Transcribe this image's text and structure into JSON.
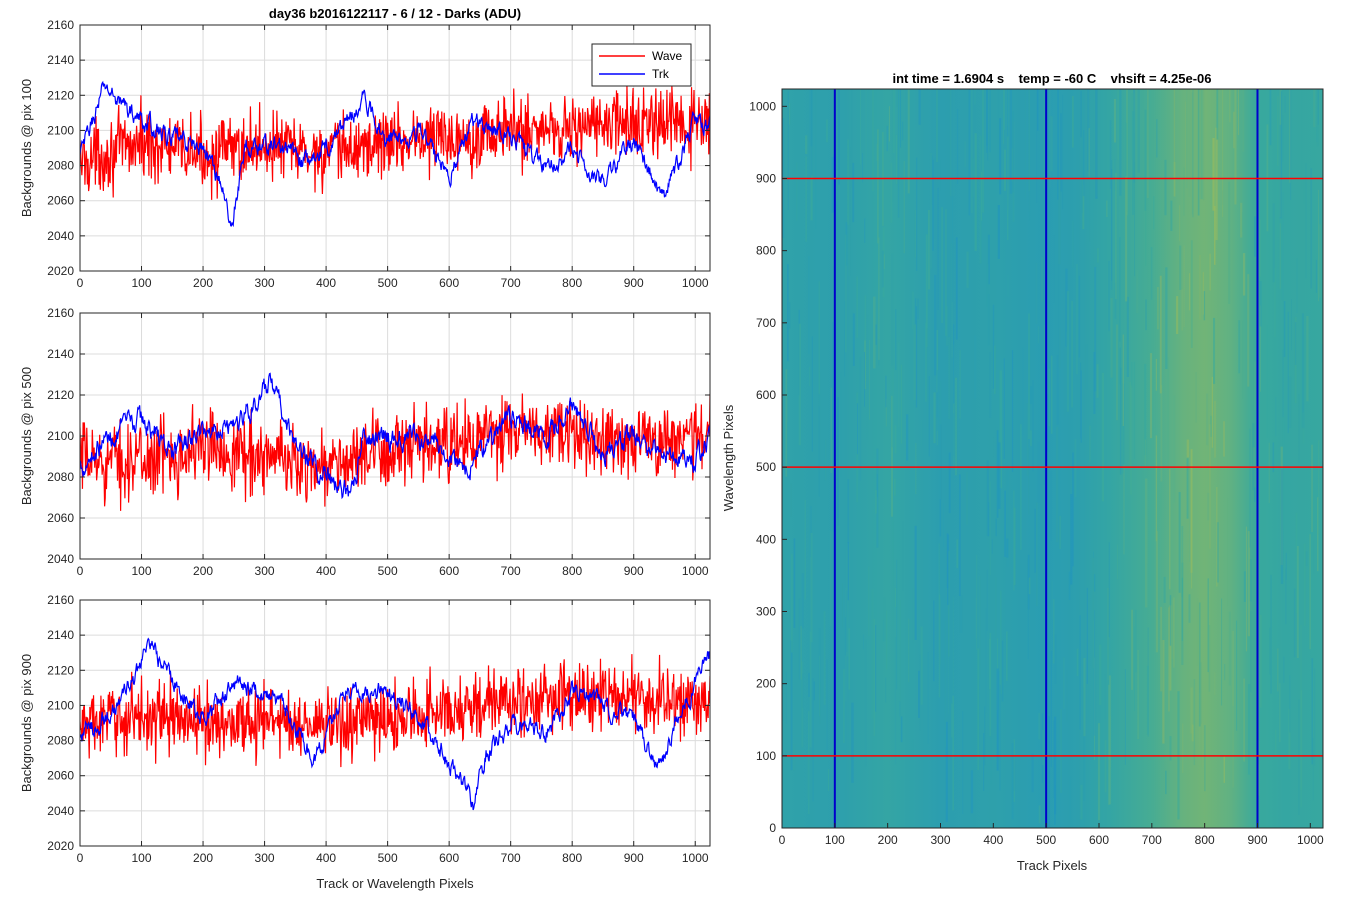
{
  "chart_data": [
    {
      "type": "line",
      "title": "day36 b2016122117 - 6 / 12 - Darks (ADU)",
      "ylabel": "Backgrounds @ pix 100",
      "xlabel": "",
      "xlim": [
        0,
        1024
      ],
      "ylim": [
        2020,
        2160
      ],
      "xticks": [
        0,
        100,
        200,
        300,
        400,
        500,
        600,
        700,
        800,
        900,
        1000
      ],
      "yticks": [
        2020,
        2040,
        2060,
        2080,
        2100,
        2120,
        2140,
        2160
      ],
      "grid": true,
      "legend": {
        "position": "top-right",
        "entries": [
          "Wave",
          "Trk"
        ]
      },
      "series": [
        {
          "name": "Wave",
          "color": "#ff0000",
          "mean": 2092,
          "noise": 14,
          "extremes": [
            2034,
            2151
          ],
          "profile": [
            [
              0,
              2082
            ],
            [
              100,
              2093
            ],
            [
              200,
              2086
            ],
            [
              300,
              2092
            ],
            [
              400,
              2086
            ],
            [
              500,
              2094
            ],
            [
              600,
              2096
            ],
            [
              700,
              2100
            ],
            [
              800,
              2102
            ],
            [
              900,
              2104
            ],
            [
              1024,
              2102
            ]
          ]
        },
        {
          "name": "Trk",
          "color": "#0000ff",
          "noise": 5,
          "extremes": [
            2040,
            2135
          ],
          "profile": [
            [
              0,
              2085
            ],
            [
              20,
              2105
            ],
            [
              40,
              2125
            ],
            [
              60,
              2118
            ],
            [
              100,
              2105
            ],
            [
              150,
              2095
            ],
            [
              200,
              2090
            ],
            [
              230,
              2070
            ],
            [
              245,
              2045
            ],
            [
              270,
              2090
            ],
            [
              320,
              2092
            ],
            [
              370,
              2082
            ],
            [
              400,
              2090
            ],
            [
              460,
              2118
            ],
            [
              500,
              2095
            ],
            [
              550,
              2100
            ],
            [
              600,
              2075
            ],
            [
              640,
              2105
            ],
            [
              700,
              2098
            ],
            [
              750,
              2080
            ],
            [
              800,
              2088
            ],
            [
              850,
              2070
            ],
            [
              900,
              2095
            ],
            [
              950,
              2060
            ],
            [
              1000,
              2108
            ],
            [
              1024,
              2102
            ]
          ]
        }
      ]
    },
    {
      "type": "line",
      "title": "",
      "ylabel": "Backgrounds @ pix 500",
      "xlabel": "",
      "xlim": [
        0,
        1024
      ],
      "ylim": [
        2040,
        2160
      ],
      "xticks": [
        0,
        100,
        200,
        300,
        400,
        500,
        600,
        700,
        800,
        900,
        1000
      ],
      "yticks": [
        2040,
        2060,
        2080,
        2100,
        2120,
        2140,
        2160
      ],
      "grid": true,
      "series": [
        {
          "name": "Wave",
          "color": "#ff0000",
          "noise": 13,
          "extremes": [
            2043,
            2143
          ],
          "profile": [
            [
              0,
              2088
            ],
            [
              100,
              2088
            ],
            [
              200,
              2095
            ],
            [
              300,
              2090
            ],
            [
              400,
              2085
            ],
            [
              500,
              2092
            ],
            [
              600,
              2095
            ],
            [
              700,
              2102
            ],
            [
              800,
              2100
            ],
            [
              900,
              2098
            ],
            [
              1024,
              2100
            ]
          ]
        },
        {
          "name": "Trk",
          "color": "#0000ff",
          "noise": 5,
          "extremes": [
            2058,
            2133
          ],
          "profile": [
            [
              0,
              2085
            ],
            [
              40,
              2098
            ],
            [
              100,
              2108
            ],
            [
              150,
              2092
            ],
            [
              200,
              2102
            ],
            [
              260,
              2108
            ],
            [
              310,
              2125
            ],
            [
              350,
              2095
            ],
            [
              400,
              2082
            ],
            [
              440,
              2068
            ],
            [
              460,
              2100
            ],
            [
              520,
              2100
            ],
            [
              580,
              2095
            ],
            [
              630,
              2085
            ],
            [
              700,
              2110
            ],
            [
              760,
              2098
            ],
            [
              800,
              2115
            ],
            [
              850,
              2092
            ],
            [
              900,
              2100
            ],
            [
              950,
              2092
            ],
            [
              1000,
              2090
            ],
            [
              1024,
              2096
            ]
          ]
        }
      ]
    },
    {
      "type": "line",
      "title": "",
      "ylabel": "Backgrounds @ pix 900",
      "xlabel": "Track or Wavelength Pixels",
      "xlim": [
        0,
        1024
      ],
      "ylim": [
        2020,
        2160
      ],
      "xticks": [
        0,
        100,
        200,
        300,
        400,
        500,
        600,
        700,
        800,
        900,
        1000
      ],
      "yticks": [
        2020,
        2040,
        2060,
        2080,
        2100,
        2120,
        2140,
        2160
      ],
      "grid": true,
      "series": [
        {
          "name": "Wave",
          "color": "#ff0000",
          "noise": 14,
          "extremes": [
            2036,
            2152
          ],
          "profile": [
            [
              0,
              2088
            ],
            [
              100,
              2095
            ],
            [
              200,
              2090
            ],
            [
              300,
              2092
            ],
            [
              400,
              2088
            ],
            [
              500,
              2092
            ],
            [
              600,
              2098
            ],
            [
              700,
              2102
            ],
            [
              800,
              2105
            ],
            [
              900,
              2105
            ],
            [
              1024,
              2100
            ]
          ]
        },
        {
          "name": "Trk",
          "color": "#0000ff",
          "noise": 5,
          "extremes": [
            2040,
            2138
          ],
          "profile": [
            [
              0,
              2082
            ],
            [
              50,
              2095
            ],
            [
              90,
              2115
            ],
            [
              110,
              2135
            ],
            [
              150,
              2115
            ],
            [
              200,
              2092
            ],
            [
              260,
              2115
            ],
            [
              330,
              2100
            ],
            [
              380,
              2068
            ],
            [
              430,
              2108
            ],
            [
              500,
              2110
            ],
            [
              560,
              2090
            ],
            [
              600,
              2068
            ],
            [
              640,
              2042
            ],
            [
              660,
              2072
            ],
            [
              700,
              2090
            ],
            [
              760,
              2085
            ],
            [
              800,
              2108
            ],
            [
              850,
              2100
            ],
            [
              900,
              2092
            ],
            [
              940,
              2062
            ],
            [
              980,
              2100
            ],
            [
              1024,
              2128
            ]
          ]
        }
      ]
    },
    {
      "type": "heatmap",
      "title": "int time = 1.6904 s    temp = -60 C    vhsift = 4.25e-06",
      "xlabel": "Track Pixels",
      "ylabel": "Wavelength Pixels",
      "xlim": [
        0,
        1024
      ],
      "ylim": [
        0,
        1024
      ],
      "xticks": [
        0,
        100,
        200,
        300,
        400,
        500,
        600,
        700,
        800,
        900,
        1000
      ],
      "yticks": [
        0,
        100,
        200,
        300,
        400,
        500,
        600,
        700,
        800,
        900,
        1000
      ],
      "colormap": "parula",
      "colors": {
        "low": "#1a8fc8",
        "mid": "#3aaa9b",
        "high": "#b8c04a"
      },
      "column_intensity_profile": [
        [
          0,
          0.35
        ],
        [
          100,
          0.3
        ],
        [
          200,
          0.4
        ],
        [
          300,
          0.28
        ],
        [
          400,
          0.32
        ],
        [
          500,
          0.25
        ],
        [
          560,
          0.3
        ],
        [
          620,
          0.4
        ],
        [
          700,
          0.55
        ],
        [
          760,
          0.68
        ],
        [
          800,
          0.72
        ],
        [
          850,
          0.65
        ],
        [
          900,
          0.48
        ],
        [
          950,
          0.42
        ],
        [
          1024,
          0.45
        ]
      ],
      "overlay_vertical_lines": {
        "color": "#0000cc",
        "x": [
          100,
          500,
          900
        ]
      },
      "overlay_horizontal_lines": {
        "color": "#ff0000",
        "y": [
          100,
          500,
          900
        ]
      }
    }
  ]
}
